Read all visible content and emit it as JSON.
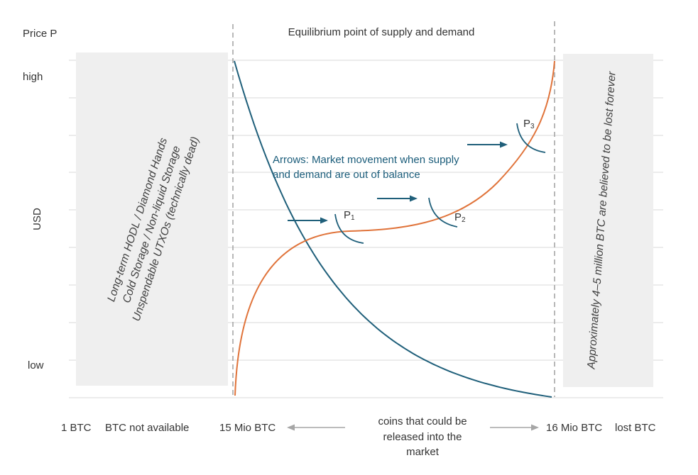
{
  "chart_data": {
    "type": "line",
    "title": "Equilibrium point of supply and demand",
    "ylabel_top": "Price P",
    "ylabel": "USD",
    "y_ticks": {
      "high": "high",
      "low": "low"
    },
    "x_labels": {
      "left_end": "1 BTC",
      "not_available": "BTC not available",
      "left_boundary": "15 Mio BTC",
      "middle": [
        "coins that could be",
        "released into the",
        "market"
      ],
      "right_boundary": "16 Mio BTC",
      "lost": "lost BTC"
    },
    "left_box": {
      "lines": [
        "Long-term HODL / Diamond Hands",
        "Cold Storage / Non-liquid Storage",
        "Unspendable UTXOs (technically dead)"
      ]
    },
    "right_box": {
      "text": "Approximately 4–5 million BTC are believed to be lost forever"
    },
    "annotation": {
      "lines": [
        "Arrows: Market movement when supply",
        "and demand are out of balance"
      ]
    },
    "price_points": [
      {
        "label": "P",
        "sub": "1"
      },
      {
        "label": "P",
        "sub": "2"
      },
      {
        "label": "P",
        "sub": "3"
      }
    ],
    "series": [
      {
        "color": "#1f5f7a"
      },
      {
        "color": "#e0733a"
      }
    ],
    "colors": {
      "demand": "#1f5f7a",
      "supply": "#e0733a",
      "arrow": "#1f5f7a",
      "box": "#efefef",
      "grid": "#d9d9d9",
      "dashed": "#a6a6a6",
      "axis_arrow": "#a6a6a6"
    }
  }
}
